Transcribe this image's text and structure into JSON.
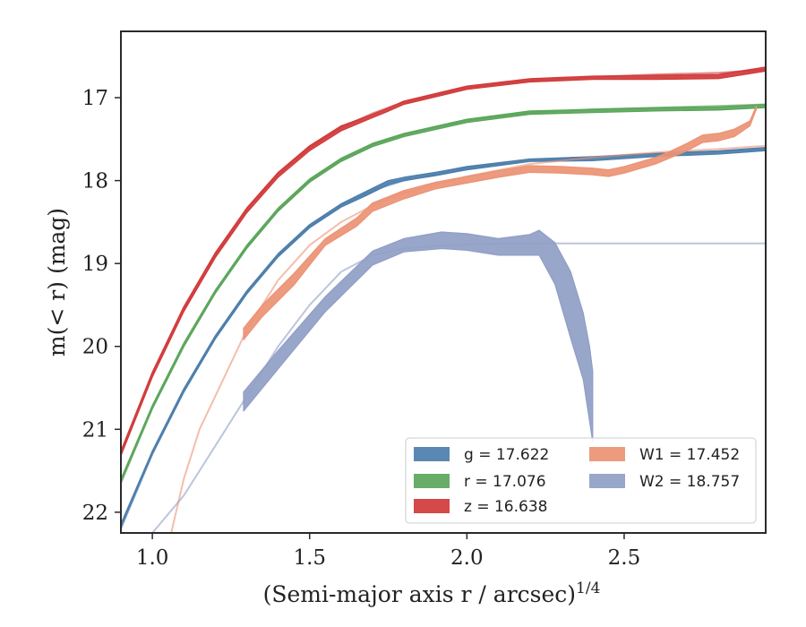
{
  "chart_data": {
    "type": "line",
    "title": "",
    "xlabel": "(Semi-major axis r / arcsec)",
    "xlabel_superscript": "1/4",
    "ylabel": "m(< r) (mag)",
    "xlim": [
      0.9,
      2.95
    ],
    "ylim": [
      22.25,
      16.2
    ],
    "y_inverted": true,
    "grid": false,
    "legend_placement": "lower-right",
    "xticks": [
      1.0,
      1.5,
      2.0,
      2.5
    ],
    "xtick_labels": [
      "1.0",
      "1.5",
      "2.0",
      "2.5"
    ],
    "yticks": [
      17,
      18,
      19,
      20,
      21,
      22
    ],
    "ytick_labels": [
      "17",
      "18",
      "19",
      "20",
      "21",
      "22"
    ],
    "series": [
      {
        "name": "g = 17.622",
        "color": "#4c7eab",
        "model_x": [
          0.9,
          1.0,
          1.1,
          1.2,
          1.3,
          1.4,
          1.5,
          1.6,
          1.7,
          1.8,
          2.0,
          2.2,
          2.4,
          2.6,
          2.8,
          2.95
        ],
        "model_y": [
          22.2,
          21.3,
          20.55,
          19.9,
          19.35,
          18.9,
          18.55,
          18.3,
          18.12,
          18.0,
          17.85,
          17.76,
          17.72,
          17.68,
          17.65,
          17.62
        ],
        "obs_x": [
          0.9,
          1.0,
          1.1,
          1.2,
          1.3,
          1.4,
          1.5,
          1.6,
          1.68,
          1.75,
          1.8,
          1.9,
          2.0,
          2.2,
          2.4,
          2.6,
          2.8,
          2.95
        ],
        "obs_lo": [
          22.14,
          21.26,
          20.51,
          19.87,
          19.33,
          18.88,
          18.53,
          18.28,
          18.13,
          18.0,
          17.96,
          17.9,
          17.83,
          17.74,
          17.71,
          17.67,
          17.64,
          17.6
        ],
        "obs_hi": [
          22.18,
          21.3,
          20.55,
          19.91,
          19.37,
          18.92,
          18.57,
          18.32,
          18.18,
          18.05,
          18.0,
          17.94,
          17.87,
          17.77,
          17.76,
          17.71,
          17.68,
          17.64
        ]
      },
      {
        "name": "r = 17.076",
        "color": "#5aa55a",
        "model_x": [
          0.9,
          1.0,
          1.1,
          1.2,
          1.3,
          1.4,
          1.5,
          1.6,
          1.7,
          1.8,
          2.0,
          2.2,
          2.4,
          2.6,
          2.8,
          2.95
        ],
        "model_y": [
          21.65,
          20.75,
          20.0,
          19.35,
          18.8,
          18.35,
          18.0,
          17.75,
          17.56,
          17.44,
          17.27,
          17.18,
          17.14,
          17.12,
          17.1,
          17.08
        ],
        "obs_x": [
          0.9,
          1.0,
          1.1,
          1.2,
          1.3,
          1.4,
          1.5,
          1.6,
          1.7,
          1.8,
          2.0,
          2.2,
          2.4,
          2.6,
          2.8,
          2.95
        ],
        "obs_lo": [
          21.6,
          20.71,
          19.96,
          19.32,
          18.78,
          18.33,
          17.98,
          17.73,
          17.55,
          17.43,
          17.26,
          17.16,
          17.14,
          17.12,
          17.11,
          17.08
        ],
        "obs_hi": [
          21.64,
          20.75,
          20.0,
          19.36,
          18.82,
          18.37,
          18.02,
          17.77,
          17.59,
          17.47,
          17.3,
          17.2,
          17.18,
          17.16,
          17.15,
          17.12
        ]
      },
      {
        "name": "z = 16.638",
        "color": "#d13a3a",
        "model_x": [
          0.9,
          1.0,
          1.1,
          1.2,
          1.3,
          1.4,
          1.5,
          1.6,
          1.7,
          1.8,
          2.0,
          2.2,
          2.4,
          2.6,
          2.8,
          2.95
        ],
        "model_y": [
          21.3,
          20.35,
          19.55,
          18.9,
          18.35,
          17.92,
          17.6,
          17.36,
          17.19,
          17.05,
          16.88,
          16.79,
          16.75,
          16.72,
          16.7,
          16.66
        ],
        "obs_x": [
          0.9,
          1.0,
          1.1,
          1.2,
          1.3,
          1.4,
          1.5,
          1.6,
          1.7,
          1.74,
          1.8,
          2.0,
          2.2,
          2.4,
          2.6,
          2.8,
          2.95
        ],
        "obs_lo": [
          21.26,
          20.31,
          19.52,
          18.87,
          18.33,
          17.9,
          17.58,
          17.34,
          17.2,
          17.14,
          17.04,
          16.86,
          16.77,
          16.74,
          16.73,
          16.72,
          16.63
        ],
        "obs_hi": [
          21.32,
          20.37,
          19.58,
          18.93,
          18.39,
          17.96,
          17.64,
          17.4,
          17.24,
          17.18,
          17.08,
          16.9,
          16.81,
          16.78,
          16.78,
          16.77,
          16.68
        ]
      },
      {
        "name": "W1 = 17.452",
        "color": "#eb9274",
        "model_x": [
          1.06,
          1.1,
          1.15,
          1.2,
          1.3,
          1.4,
          1.5,
          1.6,
          1.7,
          1.8,
          2.0,
          2.2,
          2.4,
          2.6,
          2.8,
          2.95
        ],
        "model_y": [
          22.25,
          21.6,
          21.0,
          20.6,
          19.8,
          19.2,
          18.78,
          18.5,
          18.3,
          18.15,
          17.95,
          17.8,
          17.72,
          17.66,
          17.62,
          17.58
        ],
        "obs_x": [
          1.29,
          1.35,
          1.45,
          1.55,
          1.65,
          1.7,
          1.8,
          1.9,
          2.0,
          2.1,
          2.2,
          2.3,
          2.4,
          2.45,
          2.5,
          2.6,
          2.65,
          2.7,
          2.75,
          2.8,
          2.85,
          2.9,
          2.92
        ],
        "obs_lo": [
          19.78,
          19.5,
          19.12,
          18.7,
          18.45,
          18.27,
          18.12,
          18.02,
          17.95,
          17.88,
          17.82,
          17.83,
          17.85,
          17.87,
          17.83,
          17.72,
          17.64,
          17.55,
          17.45,
          17.43,
          17.38,
          17.28,
          17.1
        ],
        "obs_hi": [
          19.92,
          19.64,
          19.26,
          18.78,
          18.55,
          18.37,
          18.22,
          18.1,
          18.03,
          17.96,
          17.9,
          17.91,
          17.93,
          17.95,
          17.91,
          17.8,
          17.72,
          17.64,
          17.54,
          17.52,
          17.47,
          17.34,
          17.14
        ]
      },
      {
        "name": "W2 = 18.757",
        "color": "#8f9ec6",
        "model_x": [
          1.0,
          1.1,
          1.2,
          1.3,
          1.4,
          1.5,
          1.6,
          1.7,
          1.8,
          1.9,
          2.0,
          2.1,
          2.2,
          2.25,
          2.3,
          2.95
        ],
        "model_y": [
          22.25,
          21.8,
          21.2,
          20.6,
          20.0,
          19.5,
          19.1,
          18.9,
          18.82,
          18.79,
          18.77,
          18.76,
          18.76,
          18.757,
          18.757,
          18.757
        ],
        "obs_x": [
          1.29,
          1.4,
          1.55,
          1.7,
          1.8,
          1.92,
          2.0,
          2.1,
          2.2,
          2.23,
          2.28,
          2.33,
          2.37,
          2.39,
          2.4
        ],
        "obs_lo": [
          20.55,
          20.05,
          19.4,
          18.85,
          18.7,
          18.62,
          18.64,
          18.7,
          18.65,
          18.6,
          18.75,
          19.1,
          19.6,
          20.0,
          20.3
        ],
        "obs_hi": [
          20.78,
          20.27,
          19.58,
          19.02,
          18.86,
          18.82,
          18.84,
          18.9,
          18.9,
          18.9,
          19.25,
          19.9,
          20.4,
          20.9,
          21.15
        ]
      }
    ]
  }
}
